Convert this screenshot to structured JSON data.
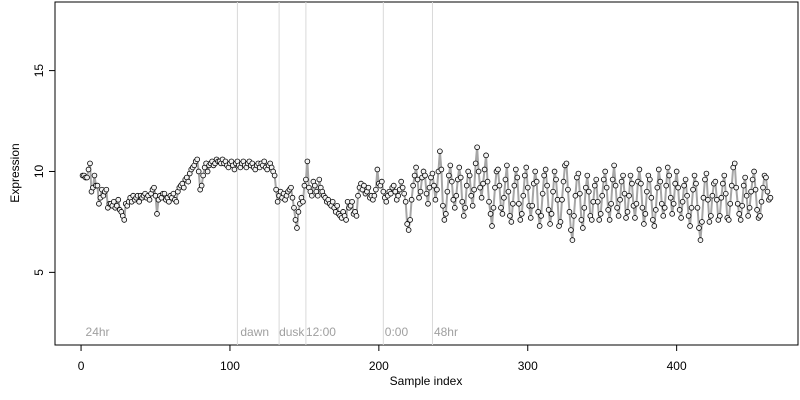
{
  "chart_data": {
    "type": "scatter",
    "xlabel": "Sample index",
    "ylabel": "Expression",
    "xlim": [
      -17.5,
      481.5
    ],
    "ylim": [
      1.4,
      18.4
    ],
    "xticks": [
      0,
      100,
      200,
      300,
      400
    ],
    "yticks": [
      5,
      10,
      15
    ],
    "vlines": [
      105,
      133,
      151,
      203,
      236
    ],
    "vline_color": "#d9d9d9",
    "annotations": [
      {
        "x": 3,
        "text": "24hr"
      },
      {
        "x": 107,
        "text": "dawn"
      },
      {
        "x": 133,
        "text": "dusk"
      },
      {
        "x": 151,
        "text": "12:00"
      },
      {
        "x": 204,
        "text": "0:00"
      },
      {
        "x": 237,
        "text": "48hr"
      }
    ],
    "line_color": "#a6a6a6",
    "point_color": "#000000",
    "point_fill": "#f3f3f3",
    "x": [
      1,
      2,
      3,
      4,
      5,
      6,
      7,
      8,
      9,
      10,
      11,
      12,
      13,
      14,
      15,
      16,
      17,
      18,
      19,
      20,
      21,
      22,
      23,
      24,
      25,
      26,
      27,
      28,
      29,
      30,
      31,
      32,
      33,
      34,
      35,
      36,
      37,
      38,
      39,
      40,
      41,
      42,
      43,
      44,
      45,
      46,
      47,
      48,
      49,
      50,
      51,
      52,
      53,
      54,
      55,
      56,
      57,
      58,
      59,
      60,
      61,
      62,
      63,
      64,
      65,
      66,
      67,
      68,
      69,
      70,
      71,
      72,
      73,
      74,
      75,
      76,
      77,
      78,
      79,
      80,
      81,
      82,
      83,
      84,
      85,
      86,
      87,
      88,
      89,
      90,
      91,
      92,
      93,
      94,
      95,
      96,
      97,
      98,
      99,
      100,
      101,
      102,
      103,
      104,
      105,
      106,
      107,
      108,
      109,
      110,
      111,
      112,
      113,
      114,
      115,
      116,
      117,
      118,
      119,
      120,
      121,
      122,
      123,
      124,
      125,
      126,
      127,
      128,
      129,
      130,
      131,
      132,
      133,
      134,
      135,
      136,
      137,
      138,
      139,
      140,
      141,
      142,
      143,
      144,
      145,
      146,
      147,
      148,
      149,
      150,
      151,
      152,
      153,
      154,
      155,
      156,
      157,
      158,
      159,
      160,
      161,
      162,
      163,
      164,
      165,
      166,
      167,
      168,
      169,
      170,
      171,
      172,
      173,
      174,
      175,
      176,
      177,
      178,
      179,
      180,
      181,
      182,
      183,
      184,
      185,
      186,
      187,
      188,
      189,
      190,
      191,
      192,
      193,
      194,
      195,
      196,
      197,
      198,
      199,
      200,
      201,
      202,
      203,
      204,
      205,
      206,
      207,
      208,
      209,
      210,
      211,
      212,
      213,
      214,
      215,
      216,
      217,
      218,
      219,
      220,
      221,
      222,
      223,
      224,
      225,
      226,
      227,
      228,
      229,
      230,
      231,
      232,
      233,
      234,
      235,
      236,
      237,
      238,
      239,
      240,
      241,
      242,
      243,
      244,
      245,
      246,
      247,
      248,
      249,
      250,
      251,
      252,
      253,
      254,
      255,
      256,
      257,
      258,
      259,
      260,
      261,
      262,
      263,
      264,
      265,
      266,
      267,
      268,
      269,
      270,
      271,
      272,
      273,
      274,
      275,
      276,
      277,
      278,
      279,
      280,
      281,
      282,
      283,
      284,
      285,
      286,
      287,
      288,
      289,
      290,
      291,
      292,
      293,
      294,
      295,
      296,
      297,
      298,
      299,
      300,
      301,
      302,
      303,
      304,
      305,
      306,
      307,
      308,
      309,
      310,
      311,
      312,
      313,
      314,
      315,
      316,
      317,
      318,
      319,
      320,
      321,
      322,
      323,
      324,
      325,
      326,
      327,
      328,
      329,
      330,
      331,
      332,
      333,
      334,
      335,
      336,
      337,
      338,
      339,
      340,
      341,
      342,
      343,
      344,
      345,
      346,
      347,
      348,
      349,
      350,
      351,
      352,
      353,
      354,
      355,
      356,
      357,
      358,
      359,
      360,
      361,
      362,
      363,
      364,
      365,
      366,
      367,
      368,
      369,
      370,
      371,
      372,
      373,
      374,
      375,
      376,
      377,
      378,
      379,
      380,
      381,
      382,
      383,
      384,
      385,
      386,
      387,
      388,
      389,
      390,
      391,
      392,
      393,
      394,
      395,
      396,
      397,
      398,
      399,
      400,
      401,
      402,
      403,
      404,
      405,
      406,
      407,
      408,
      409,
      410,
      411,
      412,
      413,
      414,
      415,
      416,
      417,
      418,
      419,
      420,
      421,
      422,
      423,
      424,
      425,
      426,
      427,
      428,
      429,
      430,
      431,
      432,
      433,
      434,
      435,
      436,
      437,
      438,
      439,
      440,
      441,
      442,
      443,
      444,
      445,
      446,
      447,
      448,
      449,
      450,
      451,
      452,
      453,
      454,
      455,
      456,
      457,
      458,
      459,
      460,
      461,
      462,
      463
    ],
    "values": [
      9.8,
      9.8,
      9.7,
      9.7,
      10.1,
      10.4,
      9.0,
      9.2,
      9.8,
      9.3,
      9.3,
      8.4,
      8.7,
      9.1,
      8.8,
      9.0,
      9.1,
      8.2,
      8.4,
      8.4,
      8.3,
      8.5,
      8.2,
      8.3,
      8.6,
      8.1,
      8.0,
      7.8,
      7.6,
      8.4,
      8.3,
      8.5,
      8.7,
      8.5,
      8.8,
      8.6,
      8.7,
      8.8,
      8.5,
      8.8,
      8.7,
      8.8,
      8.9,
      8.7,
      8.8,
      8.6,
      8.9,
      9.1,
      9.2,
      8.8,
      7.9,
      8.6,
      8.8,
      8.7,
      8.9,
      8.9,
      8.6,
      8.7,
      8.5,
      8.8,
      8.7,
      8.9,
      8.6,
      8.5,
      9.0,
      9.2,
      9.3,
      9.4,
      9.2,
      9.6,
      9.7,
      9.5,
      9.9,
      10.1,
      10.2,
      10.3,
      10.5,
      10.6,
      10.0,
      9.1,
      9.3,
      9.8,
      10.2,
      10.4,
      10.0,
      10.3,
      10.4,
      10.5,
      10.3,
      10.4,
      10.6,
      10.5,
      10.5,
      10.4,
      10.6,
      10.4,
      10.5,
      10.3,
      10.2,
      10.4,
      10.5,
      10.3,
      10.1,
      10.4,
      10.5,
      10.3,
      10.2,
      10.4,
      10.5,
      10.3,
      10.2,
      10.4,
      10.5,
      10.3,
      10.4,
      10.2,
      10.1,
      10.3,
      10.4,
      10.2,
      10.4,
      10.3,
      10.5,
      10.2,
      10.1,
      10.3,
      10.4,
      10.2,
      10.0,
      9.8,
      9.1,
      8.5,
      8.8,
      9.0,
      8.7,
      8.9,
      8.6,
      8.8,
      9.0,
      9.1,
      9.2,
      8.7,
      8.2,
      7.6,
      7.2,
      8.0,
      8.4,
      8.7,
      8.5,
      9.3,
      9.6,
      10.5,
      9.2,
      9.0,
      8.8,
      9.5,
      9.3,
      9.0,
      8.8,
      9.6,
      9.2,
      9.0,
      8.8,
      8.7,
      8.5,
      8.6,
      8.4,
      8.3,
      8.5,
      8.2,
      8.0,
      8.3,
      7.9,
      7.8,
      7.7,
      8.0,
      7.8,
      7.6,
      8.5,
      8.2,
      8.3,
      8.5,
      7.9,
      8.0,
      7.8,
      8.8,
      9.2,
      9.4,
      9.1,
      9.3,
      8.9,
      9.0,
      9.2,
      8.7,
      8.8,
      8.6,
      8.8,
      9.1,
      10.1,
      9.4,
      9.3,
      9.5,
      9.0,
      8.7,
      8.5,
      8.8,
      9.0,
      8.9,
      9.2,
      9.3,
      9.0,
      8.6,
      8.8,
      9.1,
      9.5,
      9.2,
      8.9,
      8.5,
      7.4,
      7.1,
      7.6,
      8.6,
      9.3,
      9.8,
      10.2,
      9.6,
      8.7,
      9.0,
      9.7,
      10.0,
      9.8,
      8.9,
      8.4,
      9.2,
      9.7,
      9.9,
      9.3,
      8.6,
      9.1,
      10.0,
      11.0,
      10.1,
      8.3,
      7.6,
      7.9,
      9.0,
      9.8,
      10.3,
      9.5,
      8.6,
      8.2,
      8.8,
      9.6,
      10.2,
      9.7,
      8.5,
      7.8,
      8.2,
      9.3,
      10.0,
      9.8,
      8.8,
      8.3,
      9.1,
      10.4,
      11.2,
      10.0,
      9.2,
      8.7,
      9.4,
      10.1,
      10.8,
      9.5,
      8.5,
      7.9,
      7.3,
      8.2,
      9.2,
      10.0,
      10.1,
      9.3,
      8.2,
      7.9,
      8.7,
      9.6,
      10.3,
      9.0,
      7.8,
      7.5,
      8.4,
      9.3,
      10.1,
      9.7,
      8.4,
      7.6,
      7.9,
      8.8,
      9.8,
      10.2,
      9.2,
      8.3,
      7.7,
      8.3,
      9.4,
      10.0,
      9.5,
      8.0,
      7.3,
      7.8,
      8.9,
      9.8,
      10.1,
      9.3,
      8.1,
      7.4,
      7.9,
      9.0,
      10.0,
      9.6,
      8.6,
      7.3,
      7.5,
      8.6,
      9.5,
      10.3,
      10.4,
      9.1,
      8.0,
      7.1,
      6.6,
      7.8,
      8.8,
      9.7,
      9.9,
      8.9,
      7.6,
      7.2,
      8.2,
      9.2,
      9.8,
      9.0,
      7.8,
      7.6,
      8.5,
      9.3,
      9.6,
      8.5,
      7.6,
      7.9,
      8.8,
      9.6,
      10.0,
      9.2,
      8.1,
      7.6,
      8.4,
      9.6,
      10.3,
      9.3,
      8.2,
      7.8,
      8.6,
      9.5,
      9.8,
      8.9,
      7.7,
      8.0,
      8.8,
      9.8,
      9.4,
      8.3,
      7.7,
      8.4,
      9.5,
      10.1,
      9.4,
      8.2,
      7.4,
      7.9,
      9.0,
      9.8,
      9.6,
      8.7,
      7.6,
      7.3,
      8.1,
      9.2,
      10.1,
      9.5,
      8.4,
      7.8,
      8.2,
      9.3,
      10.2,
      9.8,
      8.7,
      7.9,
      8.4,
      9.4,
      10.0,
      9.2,
      8.1,
      7.7,
      8.5,
      9.3,
      9.6,
      8.8,
      7.8,
      7.3,
      8.2,
      9.1,
      9.8,
      9.4,
      8.2,
      7.2,
      6.6,
      7.5,
      8.7,
      9.6,
      9.9,
      8.6,
      7.5,
      7.8,
      8.8,
      9.4,
      9.5,
      8.6,
      7.6,
      7.8,
      8.7,
      9.4,
      9.8,
      8.9,
      7.7,
      7.6,
      8.4,
      9.3,
      10.2,
      10.4,
      9.2,
      8.4,
      7.9,
      7.6,
      8.3,
      9.3,
      9.7,
      8.8,
      7.8,
      8.2,
      9.0,
      9.6,
      10.0,
      9.1,
      8.1,
      7.7,
      7.8,
      8.5,
      9.2,
      9.8,
      9.7,
      9.0,
      8.6,
      8.7
    ]
  }
}
